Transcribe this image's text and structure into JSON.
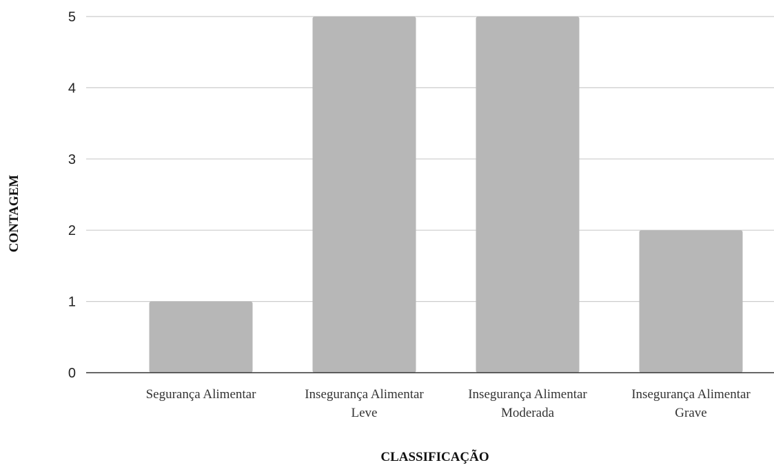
{
  "chart_data": {
    "type": "bar",
    "title": "",
    "xlabel": "CLASSIFICAÇÃO",
    "ylabel": "CONTAGEM",
    "categories": [
      [
        "Segurança Alimentar"
      ],
      [
        "Insegurança Alimentar",
        "Leve"
      ],
      [
        "Insegurança Alimentar",
        "Moderada"
      ],
      [
        "Insegurança Alimentar",
        "Grave"
      ]
    ],
    "values": [
      1,
      5,
      5,
      2
    ],
    "ylim": [
      0,
      5
    ],
    "yticks": [
      "0",
      "1",
      "2",
      "3",
      "4",
      "5"
    ],
    "grid": true,
    "legend": "none",
    "colors": {
      "bar": "#b7b7b7",
      "grid": "#cccccc",
      "axis": "#333333"
    }
  }
}
